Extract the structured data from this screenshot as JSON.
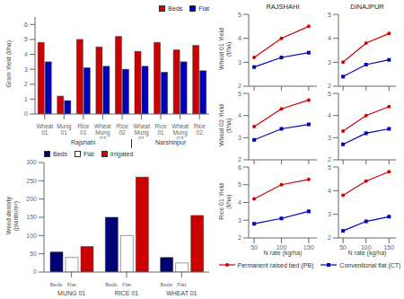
{
  "chart_data": [
    {
      "type": "bar",
      "ylabel": "Grain Yield (t/ha)",
      "categories": [
        "Wheat\n01",
        "Mung\n01",
        "Rice\n01",
        "Wheat\nMung\n02",
        "Rice\n02",
        "Wheat\nMung\n01",
        "Rice\n01",
        "Wheat\nMung\n02",
        "Rice\n02"
      ],
      "series": [
        {
          "name": "Beds",
          "color": "#cc0000",
          "values": [
            4.8,
            1.2,
            5.0,
            4.5,
            5.2,
            4.2,
            4.8,
            4.3,
            4.6
          ]
        },
        {
          "name": "Flat",
          "color": "#0000bb",
          "values": [
            3.5,
            0.9,
            3.1,
            3.2,
            3.0,
            3.2,
            2.8,
            3.5,
            2.9
          ]
        }
      ],
      "ylim": [
        0,
        6.5
      ],
      "yticks": [
        0,
        1,
        2,
        3,
        4,
        5,
        6
      ],
      "grid": false,
      "legend": "upper right",
      "annotations": [
        "Rajshahi",
        "Narshinpur"
      ]
    },
    {
      "type": "bar",
      "ylabel": "Weed density\n(plants/m²)",
      "categories": [
        "MUNG 01",
        "RICE 01",
        "WHEAT 01"
      ],
      "series": [
        {
          "name": "Beds",
          "color": "#000077",
          "values": [
            55,
            150,
            40
          ]
        },
        {
          "name": "Flat",
          "color": "#ffffff",
          "values": [
            40,
            100,
            25
          ]
        },
        {
          "name": "Irrigated",
          "color": "#cc0000",
          "values": [
            70,
            260,
            155
          ]
        }
      ],
      "ylim": [
        0,
        300
      ],
      "yticks": [
        0,
        50,
        100,
        150,
        200,
        250,
        300
      ],
      "grid": false,
      "legend": "upper left",
      "annotations": [
        "Beds",
        "Flat"
      ]
    },
    {
      "type": "line",
      "title": "RAJSHAHI",
      "ylabel": "Wheat 01 Yield\n(t/ha)",
      "x": [
        50,
        100,
        150
      ],
      "xlim": [
        40,
        165
      ],
      "xticks": [
        50,
        100,
        150
      ],
      "ylim": [
        2,
        5
      ],
      "yticks": [
        2,
        3,
        4,
        5
      ],
      "tick_labels": "y",
      "grid": false,
      "series": [
        {
          "name": "Permanent raised bed (PB)",
          "color": "#cc0000",
          "marker": "circle",
          "values": [
            3.2,
            4.0,
            4.5
          ]
        },
        {
          "name": "Conventional flat (CT)",
          "color": "#0000bb",
          "marker": "square",
          "values": [
            2.8,
            3.2,
            3.4
          ]
        }
      ]
    },
    {
      "type": "line",
      "ylabel": "Wheat 02 Yield\n(t/ha)",
      "x": [
        50,
        100,
        150
      ],
      "xlim": [
        40,
        165
      ],
      "xticks": [
        50,
        100,
        150
      ],
      "ylim": [
        2,
        5
      ],
      "yticks": [
        2,
        3,
        4,
        5
      ],
      "tick_labels": "y",
      "grid": false,
      "series": [
        {
          "name": "Permanent raised bed (PB)",
          "color": "#cc0000",
          "marker": "circle",
          "values": [
            3.5,
            4.3,
            4.7
          ]
        },
        {
          "name": "Conventional flat (CT)",
          "color": "#0000bb",
          "marker": "square",
          "values": [
            2.9,
            3.4,
            3.6
          ]
        }
      ]
    },
    {
      "type": "line",
      "ylabel": "Rice 01 Yield\n(t/ha)",
      "xlabel": "N rate (kg/ha)",
      "x": [
        50,
        100,
        150
      ],
      "xlim": [
        40,
        165
      ],
      "xticks": [
        50,
        100,
        150
      ],
      "ylim": [
        2,
        6
      ],
      "yticks": [
        2,
        3,
        4,
        5,
        6
      ],
      "grid": false,
      "series": [
        {
          "name": "Permanent raised bed (PB)",
          "color": "#cc0000",
          "marker": "circle",
          "values": [
            4.2,
            5.0,
            5.3
          ]
        },
        {
          "name": "Conventional flat (CT)",
          "color": "#0000bb",
          "marker": "square",
          "values": [
            2.8,
            3.1,
            3.5
          ]
        }
      ]
    },
    {
      "type": "line",
      "title": "DINAJPUR",
      "x": [
        50,
        100,
        150
      ],
      "xlim": [
        40,
        165
      ],
      "xticks": [
        50,
        100,
        150
      ],
      "ylim": [
        2,
        5
      ],
      "yticks": [
        2,
        3,
        4,
        5
      ],
      "tick_labels": "y",
      "grid": false,
      "series": [
        {
          "name": "Permanent raised bed (PB)",
          "color": "#cc0000",
          "marker": "circle",
          "values": [
            3.0,
            3.8,
            4.2
          ]
        },
        {
          "name": "Conventional flat (CT)",
          "color": "#0000bb",
          "marker": "square",
          "values": [
            2.4,
            2.9,
            3.1
          ]
        }
      ]
    },
    {
      "type": "line",
      "x": [
        50,
        100,
        150
      ],
      "xlim": [
        40,
        165
      ],
      "xticks": [
        50,
        100,
        150
      ],
      "ylim": [
        2,
        5
      ],
      "yticks": [
        2,
        3,
        4,
        5
      ],
      "tick_labels": "y",
      "grid": false,
      "series": [
        {
          "name": "Permanent raised bed (PB)",
          "color": "#cc0000",
          "marker": "circle",
          "values": [
            3.3,
            4.0,
            4.4
          ]
        },
        {
          "name": "Conventional flat (CT)",
          "color": "#0000bb",
          "marker": "square",
          "values": [
            2.7,
            3.2,
            3.4
          ]
        }
      ]
    },
    {
      "type": "line",
      "xlabel": "N rate (kg/ha)",
      "x": [
        50,
        100,
        150
      ],
      "xlim": [
        40,
        165
      ],
      "xticks": [
        50,
        100,
        150
      ],
      "ylim": [
        2,
        5
      ],
      "yticks": [
        2,
        3,
        4,
        5
      ],
      "grid": false,
      "legend": "bottom",
      "series": [
        {
          "name": "Permanent raised bed (PB)",
          "color": "#cc0000",
          "marker": "circle",
          "values": [
            3.8,
            4.4,
            4.8
          ]
        },
        {
          "name": "Conventional flat (CT)",
          "color": "#0000bb",
          "marker": "square",
          "values": [
            2.3,
            2.7,
            2.9
          ]
        }
      ]
    }
  ]
}
